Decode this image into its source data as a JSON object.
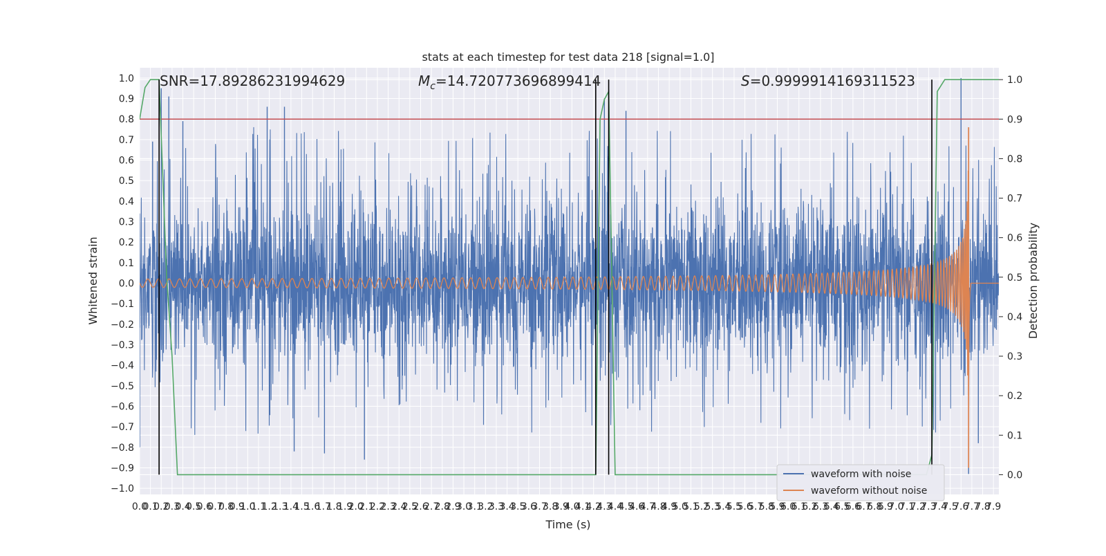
{
  "chart_data": {
    "type": "line",
    "title": "stats at each timestep for test data 218 [signal=1.0]",
    "xlabel": "Time (s)",
    "ylabel": "Whitened strain",
    "ylabel_right": "Detection probability",
    "xlim": [
      0.0,
      7.95
    ],
    "ylim": [
      -1.03,
      1.05
    ],
    "ylim_right": [
      -0.05,
      1.03
    ],
    "x_ticks": [
      "0.0",
      "0.1",
      "0.2",
      "0.3",
      "0.4",
      "0.5",
      "0.6",
      "0.7",
      "0.8",
      "0.9",
      "1.0",
      "1.1",
      "1.2",
      "1.3",
      "1.4",
      "1.5",
      "1.6",
      "1.7",
      "1.8",
      "1.9",
      "2.0",
      "2.1",
      "2.2",
      "2.3",
      "2.4",
      "2.5",
      "2.6",
      "2.7",
      "2.8",
      "2.9",
      "3.0",
      "3.1",
      "3.2",
      "3.3",
      "3.4",
      "3.5",
      "3.6",
      "3.7",
      "3.8",
      "3.9",
      "4.0",
      "4.1",
      "4.2",
      "4.3",
      "4.4",
      "4.5",
      "4.6",
      "4.7",
      "4.8",
      "4.9",
      "5.0",
      "5.1",
      "5.2",
      "5.3",
      "5.4",
      "5.5",
      "5.6",
      "5.7",
      "5.8",
      "5.9",
      "6.0",
      "6.1",
      "6.2",
      "6.3",
      "6.4",
      "6.5",
      "6.6",
      "6.7",
      "6.8",
      "6.9",
      "7.0",
      "7.1",
      "7.2",
      "7.3",
      "7.4",
      "7.5",
      "7.6",
      "7.7",
      "7.8",
      "7.9"
    ],
    "y_ticks": [
      "−1.0",
      "−0.9",
      "−0.8",
      "−0.7",
      "−0.6",
      "−0.5",
      "−0.4",
      "−0.3",
      "−0.2",
      "−0.1",
      "0.0",
      "0.1",
      "0.2",
      "0.3",
      "0.4",
      "0.5",
      "0.6",
      "0.7",
      "0.8",
      "0.9",
      "1.0"
    ],
    "y_ticks_right": [
      "0.0",
      "0.1",
      "0.2",
      "0.3",
      "0.4",
      "0.5",
      "0.6",
      "0.7",
      "0.8",
      "0.9",
      "1.0"
    ],
    "annotations": {
      "snr": "SNR=17.89286231994629",
      "mc_symbol": "M",
      "mc_sub": "c",
      "mc_value": "=14.720773696899414",
      "s_symbol": "S",
      "s_value": "=0.9999914169311523"
    },
    "threshold": {
      "axis": "right",
      "value": 0.9,
      "color": "#c44e52"
    },
    "vertical_markers": [
      0.18,
      4.22,
      4.34,
      7.33
    ],
    "series": [
      {
        "name": "waveform with noise",
        "color": "#4c72b0",
        "description": "whitened noisy strain, roughly ±0.4 with spikes up to 1.0",
        "noise_envelope": 0.36,
        "spikes": [
          {
            "x": 0.2,
            "y": 0.95
          },
          {
            "x": 0.27,
            "y": 0.91
          },
          {
            "x": 0.12,
            "y": 0.69
          },
          {
            "x": 0.4,
            "y": 0.79
          },
          {
            "x": 1.18,
            "y": 0.86
          },
          {
            "x": 1.34,
            "y": 0.86
          },
          {
            "x": 4.3,
            "y": 0.9
          },
          {
            "x": 4.5,
            "y": 0.84
          },
          {
            "x": 7.6,
            "y": 1.0
          },
          {
            "x": 0.0,
            "y": -0.8
          },
          {
            "x": 1.43,
            "y": -0.82
          },
          {
            "x": 1.71,
            "y": -0.83
          },
          {
            "x": 2.08,
            "y": -0.86
          },
          {
            "x": 7.67,
            "y": -0.93
          },
          {
            "x": 7.76,
            "y": -0.78
          }
        ]
      },
      {
        "name": "waveform without noise",
        "color": "#dd8452",
        "description": "chirp with growing amplitude and frequency, merger near 7.67 s",
        "merger_time": 7.67,
        "amplitude_start": 0.02,
        "amplitude_peak": 0.76,
        "amplitude_min": -0.9
      },
      {
        "name": "detection probability",
        "axis": "right",
        "color": "#55a868",
        "x": [
          0.0,
          0.05,
          0.1,
          0.15,
          0.18,
          0.25,
          0.3,
          0.35,
          4.22,
          4.26,
          4.3,
          4.34,
          4.4,
          4.45,
          7.28,
          7.33,
          7.38,
          7.45,
          7.95
        ],
        "y": [
          0.9,
          0.98,
          1.0,
          1.0,
          1.0,
          0.5,
          0.3,
          0.0,
          0.0,
          0.9,
          0.95,
          0.97,
          0.0,
          0.0,
          0.0,
          0.05,
          0.97,
          1.0,
          1.0
        ]
      }
    ],
    "legend": {
      "placement": "lower-right",
      "entries": [
        "waveform with noise",
        "waveform without noise"
      ]
    }
  }
}
